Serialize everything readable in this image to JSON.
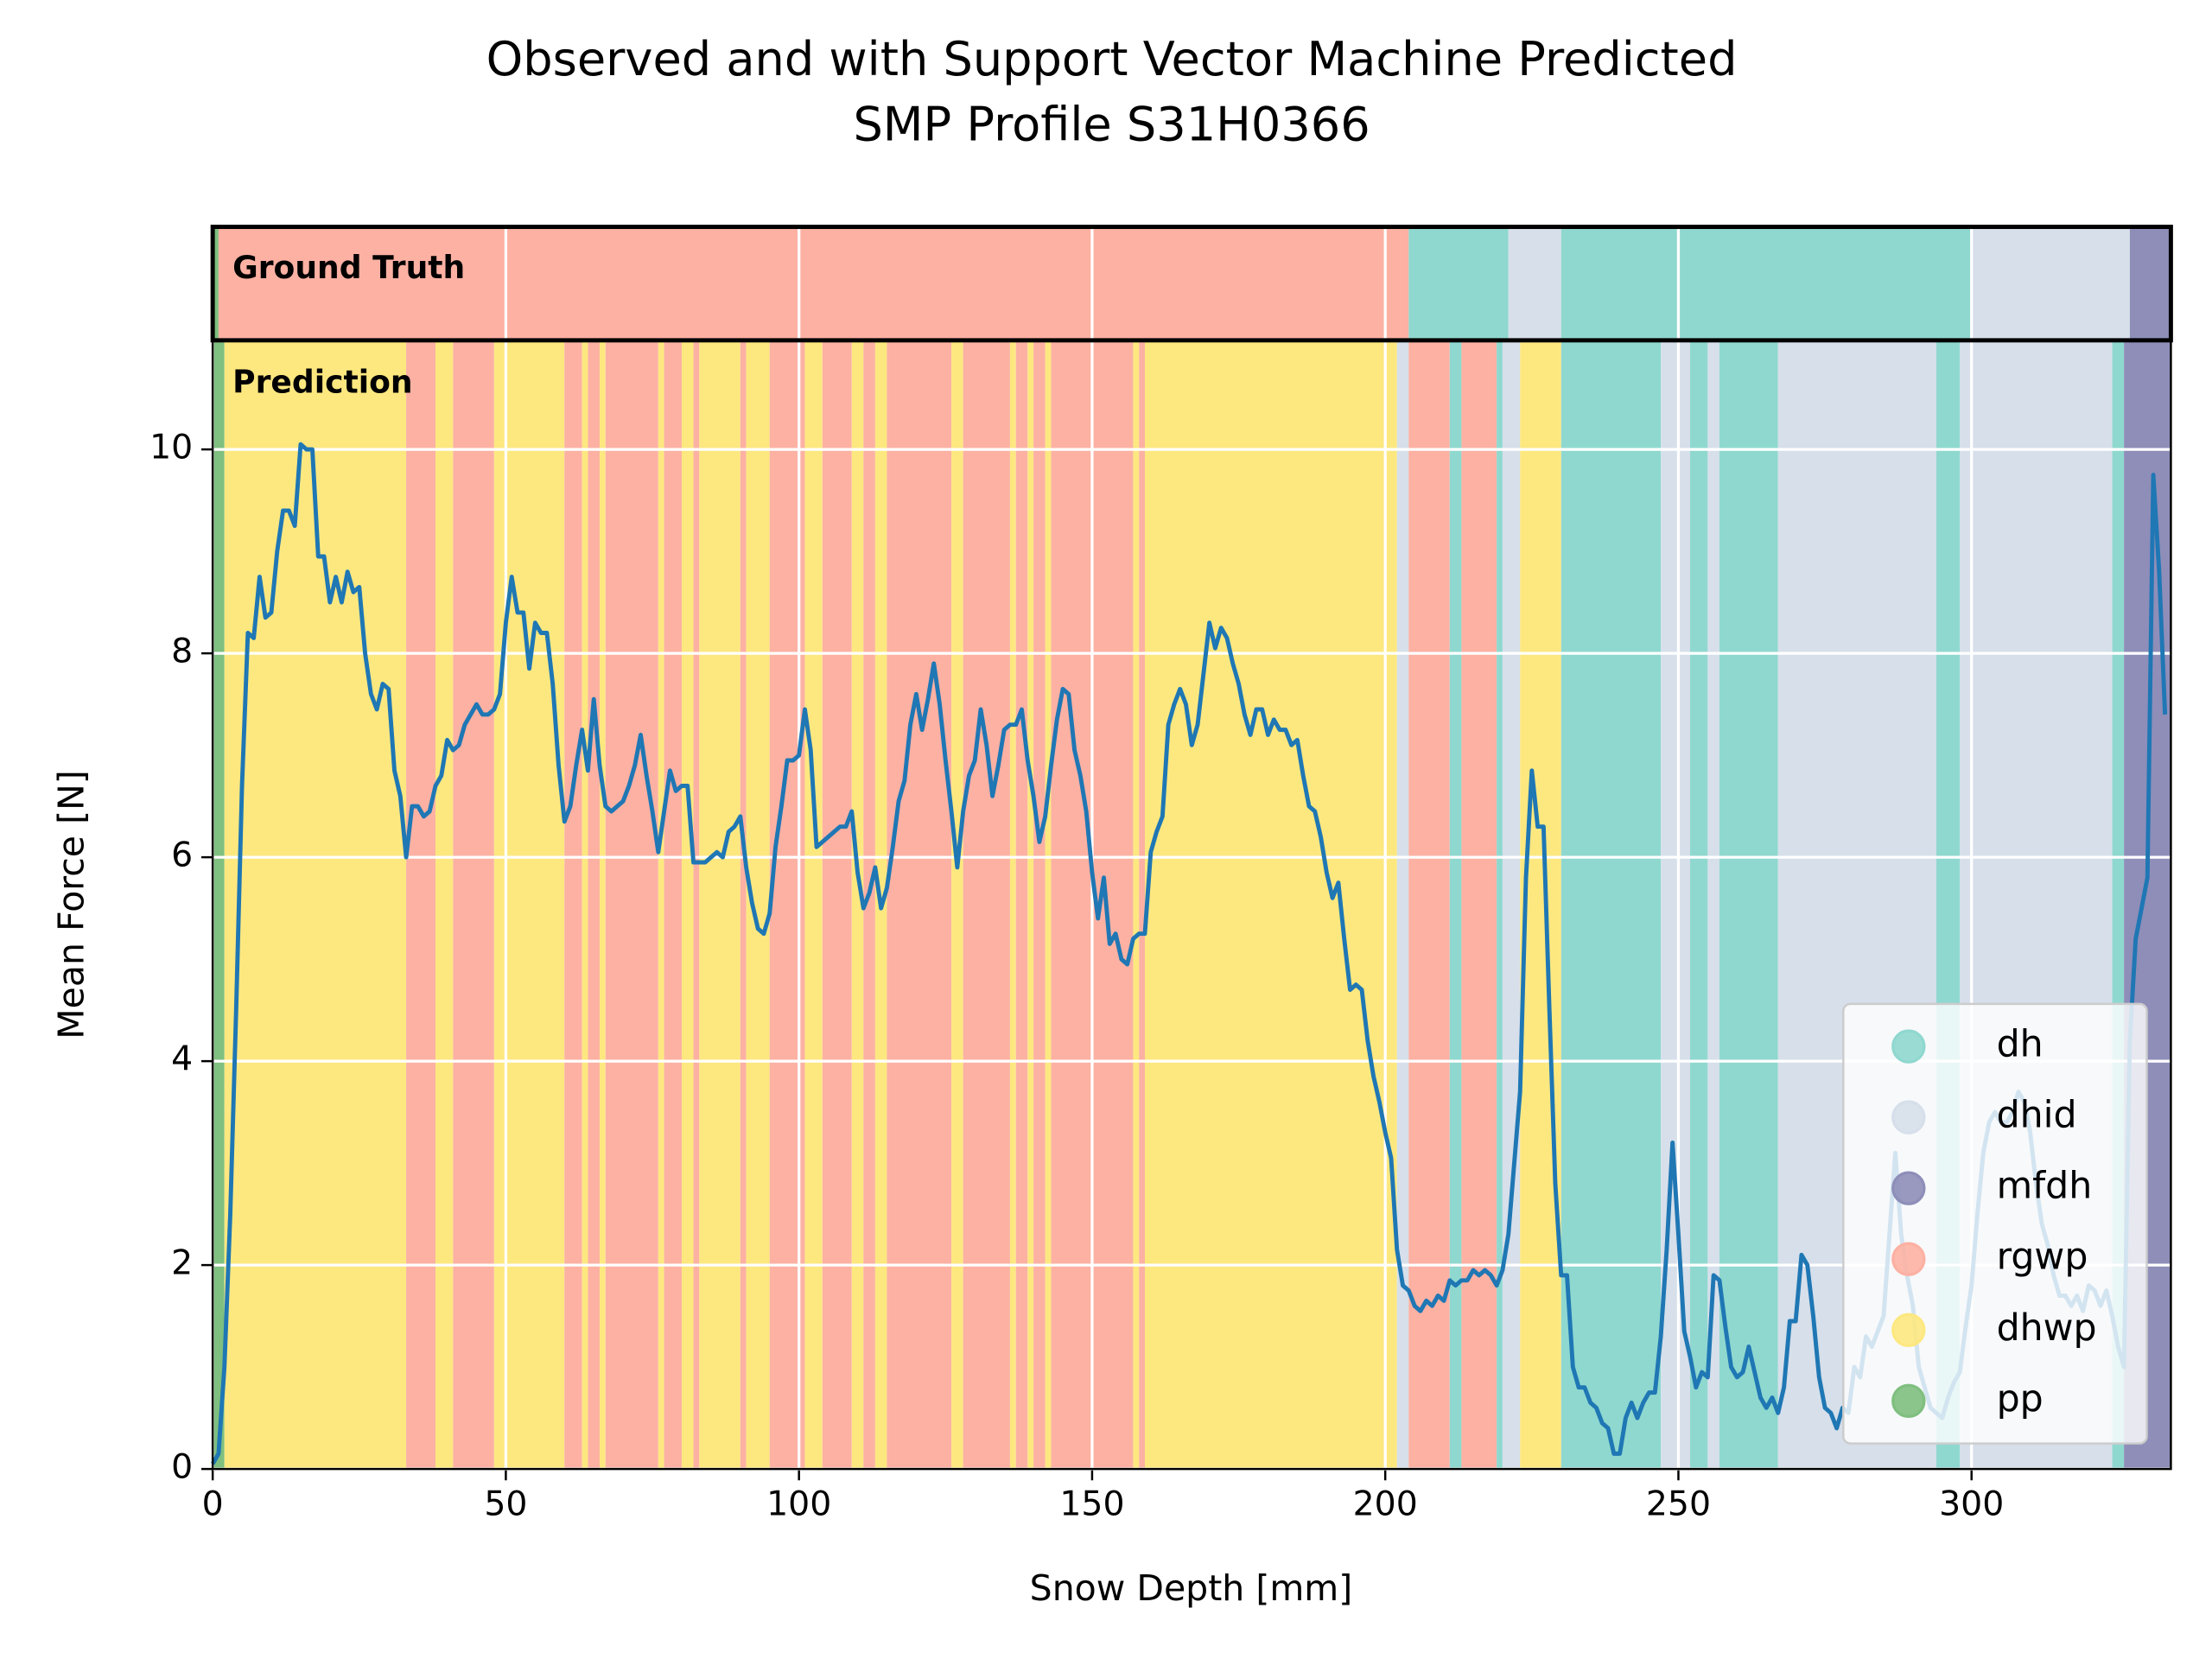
{
  "chart_data": {
    "type": "line",
    "title": [
      "Observed and with Support Vector Machine Predicted",
      "SMP Profile S31H0366"
    ],
    "xlabel": "Snow Depth [mm]",
    "ylabel": "Mean Force [N]",
    "color": "#1f77b4",
    "xlim": [
      0,
      334
    ],
    "ylim": [
      0,
      11.07
    ],
    "xticks": [
      0,
      50,
      100,
      150,
      200,
      250,
      300
    ],
    "yticks": [
      0,
      2,
      4,
      6,
      8,
      10
    ],
    "grid": true,
    "legend_loc": "lower right",
    "classes": [
      {
        "name": "dh",
        "color": "#8fd8cf"
      },
      {
        "name": "dhid",
        "color": "#d6dfea"
      },
      {
        "name": "mfdh",
        "color": "#8e8eb9"
      },
      {
        "name": "rgwp",
        "color": "#fcb1a3"
      },
      {
        "name": "dhwp",
        "color": "#fde880"
      },
      {
        "name": "pp",
        "color": "#7fbf7f"
      }
    ],
    "ground_truth": {
      "label": "Ground Truth",
      "segments": [
        {
          "start": 0,
          "end": 1,
          "class": "pp"
        },
        {
          "start": 1,
          "end": 204,
          "class": "rgwp"
        },
        {
          "start": 204,
          "end": 221,
          "class": "dh"
        },
        {
          "start": 221,
          "end": 230,
          "class": "dhid"
        },
        {
          "start": 230,
          "end": 300,
          "class": "dh"
        },
        {
          "start": 300,
          "end": 327,
          "class": "dhid"
        },
        {
          "start": 327,
          "end": 334,
          "class": "mfdh"
        }
      ]
    },
    "prediction": {
      "label": "Prediction",
      "segments": [
        {
          "start": 0,
          "end": 2,
          "class": "pp"
        },
        {
          "start": 2,
          "end": 33,
          "class": "dhwp"
        },
        {
          "start": 33,
          "end": 38,
          "class": "rgwp"
        },
        {
          "start": 38,
          "end": 41,
          "class": "dhwp"
        },
        {
          "start": 41,
          "end": 48,
          "class": "rgwp"
        },
        {
          "start": 48,
          "end": 60,
          "class": "dhwp"
        },
        {
          "start": 60,
          "end": 63,
          "class": "rgwp"
        },
        {
          "start": 63,
          "end": 64,
          "class": "dhwp"
        },
        {
          "start": 64,
          "end": 66,
          "class": "rgwp"
        },
        {
          "start": 66,
          "end": 67,
          "class": "dhwp"
        },
        {
          "start": 67,
          "end": 76,
          "class": "rgwp"
        },
        {
          "start": 76,
          "end": 77,
          "class": "dhwp"
        },
        {
          "start": 77,
          "end": 80,
          "class": "rgwp"
        },
        {
          "start": 80,
          "end": 82,
          "class": "dhwp"
        },
        {
          "start": 82,
          "end": 83,
          "class": "rgwp"
        },
        {
          "start": 83,
          "end": 90,
          "class": "dhwp"
        },
        {
          "start": 90,
          "end": 91,
          "class": "rgwp"
        },
        {
          "start": 91,
          "end": 95,
          "class": "dhwp"
        },
        {
          "start": 95,
          "end": 101,
          "class": "rgwp"
        },
        {
          "start": 101,
          "end": 104,
          "class": "dhwp"
        },
        {
          "start": 104,
          "end": 109,
          "class": "rgwp"
        },
        {
          "start": 109,
          "end": 111,
          "class": "dhwp"
        },
        {
          "start": 111,
          "end": 113,
          "class": "rgwp"
        },
        {
          "start": 113,
          "end": 115,
          "class": "dhwp"
        },
        {
          "start": 115,
          "end": 126,
          "class": "rgwp"
        },
        {
          "start": 126,
          "end": 128,
          "class": "dhwp"
        },
        {
          "start": 128,
          "end": 136,
          "class": "rgwp"
        },
        {
          "start": 136,
          "end": 137,
          "class": "dhwp"
        },
        {
          "start": 137,
          "end": 139,
          "class": "rgwp"
        },
        {
          "start": 139,
          "end": 140,
          "class": "dhwp"
        },
        {
          "start": 140,
          "end": 142,
          "class": "rgwp"
        },
        {
          "start": 142,
          "end": 143,
          "class": "dhwp"
        },
        {
          "start": 143,
          "end": 157,
          "class": "rgwp"
        },
        {
          "start": 157,
          "end": 158,
          "class": "dhwp"
        },
        {
          "start": 158,
          "end": 159,
          "class": "rgwp"
        },
        {
          "start": 159,
          "end": 202,
          "class": "dhwp"
        },
        {
          "start": 202,
          "end": 204,
          "class": "dhid"
        },
        {
          "start": 204,
          "end": 211,
          "class": "rgwp"
        },
        {
          "start": 211,
          "end": 213,
          "class": "dh"
        },
        {
          "start": 213,
          "end": 219,
          "class": "rgwp"
        },
        {
          "start": 219,
          "end": 220,
          "class": "dh"
        },
        {
          "start": 220,
          "end": 223,
          "class": "dhid"
        },
        {
          "start": 223,
          "end": 230,
          "class": "dhwp"
        },
        {
          "start": 230,
          "end": 247,
          "class": "dh"
        },
        {
          "start": 247,
          "end": 252,
          "class": "dhid"
        },
        {
          "start": 252,
          "end": 255,
          "class": "dh"
        },
        {
          "start": 255,
          "end": 257,
          "class": "dhid"
        },
        {
          "start": 257,
          "end": 267,
          "class": "dh"
        },
        {
          "start": 267,
          "end": 294,
          "class": "dhid"
        },
        {
          "start": 294,
          "end": 298,
          "class": "dh"
        },
        {
          "start": 298,
          "end": 324,
          "class": "dhid"
        },
        {
          "start": 324,
          "end": 326,
          "class": "dh"
        },
        {
          "start": 326,
          "end": 334,
          "class": "mfdh"
        }
      ]
    },
    "x": [
      0,
      1,
      2,
      3,
      4,
      5,
      6,
      7,
      8,
      9,
      10,
      11,
      12,
      13,
      14,
      15,
      16,
      17,
      18,
      19,
      20,
      21,
      22,
      23,
      24,
      25,
      26,
      27,
      28,
      29,
      30,
      31,
      32,
      33,
      34,
      35,
      36,
      37,
      38,
      39,
      40,
      41,
      42,
      43,
      44,
      45,
      46,
      47,
      48,
      49,
      50,
      51,
      52,
      53,
      54,
      55,
      56,
      57,
      58,
      59,
      60,
      61,
      62,
      63,
      64,
      65,
      66,
      67,
      68,
      69,
      70,
      71,
      72,
      73,
      74,
      75,
      76,
      77,
      78,
      79,
      80,
      81,
      82,
      83,
      84,
      85,
      86,
      87,
      88,
      89,
      90,
      91,
      92,
      93,
      94,
      95,
      96,
      97,
      98,
      99,
      100,
      101,
      102,
      103,
      104,
      105,
      106,
      107,
      108,
      109,
      110,
      111,
      112,
      113,
      114,
      115,
      116,
      117,
      118,
      119,
      120,
      121,
      122,
      123,
      124,
      125,
      126,
      127,
      128,
      129,
      130,
      131,
      132,
      133,
      134,
      135,
      136,
      137,
      138,
      139,
      140,
      141,
      142,
      143,
      144,
      145,
      146,
      147,
      148,
      149,
      150,
      151,
      152,
      153,
      154,
      155,
      156,
      157,
      158,
      159,
      160,
      161,
      162,
      163,
      164,
      165,
      166,
      167,
      168,
      169,
      170,
      171,
      172,
      173,
      174,
      175,
      176,
      177,
      178,
      179,
      180,
      181,
      182,
      183,
      184,
      185,
      186,
      187,
      188,
      189,
      190,
      191,
      192,
      193,
      194,
      195,
      196,
      197,
      198,
      199,
      200,
      201,
      202,
      203,
      204,
      205,
      206,
      207,
      208,
      209,
      210,
      211,
      212,
      213,
      214,
      215,
      216,
      217,
      218,
      219,
      220,
      221,
      222,
      223,
      224,
      225,
      226,
      227,
      228,
      229,
      230,
      231,
      232,
      233,
      234,
      235,
      236,
      237,
      238,
      239,
      240,
      241,
      242,
      243,
      244,
      245,
      246,
      247,
      248,
      249,
      250,
      251,
      252,
      253,
      254,
      255,
      256,
      257,
      258,
      259,
      260,
      261,
      262,
      263,
      264,
      265,
      266,
      267,
      268,
      269,
      270,
      271,
      272,
      273,
      274,
      275,
      276,
      277,
      278,
      279,
      280,
      281,
      282,
      283,
      284,
      285,
      286,
      287,
      288,
      289,
      290,
      291,
      292,
      293,
      294,
      295,
      296,
      297,
      298,
      299,
      300,
      301,
      302,
      303,
      304,
      305,
      306,
      307,
      308,
      309,
      310,
      311,
      312,
      313,
      314,
      315,
      316,
      317,
      318,
      319,
      320,
      321,
      322,
      323,
      324,
      325,
      326,
      327,
      328,
      329,
      330,
      331,
      332,
      333
    ],
    "values": [
      0.05,
      0.15,
      1,
      2.5,
      4.5,
      6.7,
      8.2,
      8.15,
      8.75,
      8.35,
      8.4,
      9,
      9.4,
      9.4,
      9.25,
      10.05,
      10,
      10,
      8.95,
      8.95,
      8.5,
      8.75,
      8.5,
      8.8,
      8.6,
      8.65,
      8,
      7.6,
      7.45,
      7.7,
      7.65,
      6.85,
      6.6,
      6,
      6.5,
      6.5,
      6.4,
      6.45,
      6.7,
      6.8,
      7.15,
      7.05,
      7.1,
      7.3,
      7.4,
      7.5,
      7.4,
      7.4,
      7.45,
      7.6,
      8.3,
      8.75,
      8.4,
      8.4,
      7.85,
      8.3,
      8.2,
      8.2,
      7.7,
      6.9,
      6.35,
      6.5,
      6.9,
      7.25,
      6.85,
      7.55,
      6.9,
      6.5,
      6.45,
      6.5,
      6.55,
      6.7,
      6.9,
      7.2,
      6.8,
      6.45,
      6.05,
      6.45,
      6.85,
      6.65,
      6.7,
      6.7,
      5.95,
      5.95,
      5.95,
      6,
      6.05,
      6,
      6.25,
      6.3,
      6.4,
      5.9,
      5.55,
      5.3,
      5.25,
      5.45,
      6.1,
      6.5,
      6.95,
      6.95,
      7,
      7.45,
      7.05,
      6.1,
      6.15,
      6.2,
      6.25,
      6.3,
      6.3,
      6.45,
      5.85,
      5.5,
      5.65,
      5.9,
      5.5,
      5.7,
      6.1,
      6.55,
      6.75,
      7.3,
      7.6,
      7.25,
      7.55,
      7.9,
      7.5,
      6.95,
      6.45,
      5.9,
      6.45,
      6.8,
      6.95,
      7.45,
      7.1,
      6.6,
      6.9,
      7.25,
      7.3,
      7.3,
      7.45,
      6.95,
      6.6,
      6.15,
      6.4,
      6.9,
      7.35,
      7.65,
      7.6,
      7.05,
      6.8,
      6.45,
      5.85,
      5.4,
      5.8,
      5.15,
      5.25,
      5,
      4.95,
      5.2,
      5.25,
      5.25,
      6.05,
      6.25,
      6.4,
      7.3,
      7.5,
      7.65,
      7.5,
      7.1,
      7.3,
      7.8,
      8.3,
      8.05,
      8.25,
      8.15,
      7.9,
      7.7,
      7.4,
      7.2,
      7.45,
      7.45,
      7.2,
      7.35,
      7.25,
      7.25,
      7.1,
      7.15,
      6.8,
      6.5,
      6.45,
      6.2,
      5.85,
      5.6,
      5.75,
      5.2,
      4.7,
      4.75,
      4.7,
      4.2,
      3.85,
      3.6,
      3.3,
      3.05,
      2.15,
      1.8,
      1.75,
      1.6,
      1.55,
      1.65,
      1.6,
      1.7,
      1.65,
      1.85,
      1.8,
      1.85,
      1.85,
      1.95,
      1.9,
      1.95,
      1.9,
      1.8,
      1.95,
      2.3,
      3,
      3.7,
      5.8,
      6.85,
      6.3,
      6.3,
      4.5,
      2.8,
      1.9,
      1.9,
      1,
      0.8,
      0.8,
      0.65,
      0.6,
      0.45,
      0.4,
      0.15,
      0.15,
      0.5,
      0.65,
      0.5,
      0.65,
      0.75,
      0.75,
      1.3,
      2.15,
      3.2,
      2.3,
      1.35,
      1.1,
      0.8,
      0.95,
      0.9,
      1.9,
      1.85,
      1.4,
      1,
      0.9,
      0.95,
      1.2,
      0.95,
      0.7,
      0.6,
      0.7,
      0.55,
      0.8,
      1.45,
      1.45,
      2.1,
      2,
      1.5,
      0.9,
      0.6,
      0.55,
      0.4,
      0.6,
      0.55,
      1,
      0.9,
      1.3,
      1.2,
      1.35,
      1.5,
      2.3,
      3.1,
      2.3,
      1.9,
      1.6,
      1,
      0.8,
      0.6,
      0.55,
      0.5,
      0.7,
      0.85,
      0.95,
      1.4,
      1.8,
      2.5,
      3.1,
      3.4,
      3.5,
      3.4,
      3.4,
      3.5,
      3.7,
      3.6,
      3.3,
      2.8,
      2.4,
      2.2,
      1.9,
      1.7,
      1.7,
      1.6,
      1.7,
      1.55,
      1.8,
      1.75,
      1.6,
      1.75,
      1.5,
      1.2,
      1,
      4.2,
      5.2,
      5.5,
      5.8,
      9.75,
      8.8,
      7.4
    ]
  }
}
